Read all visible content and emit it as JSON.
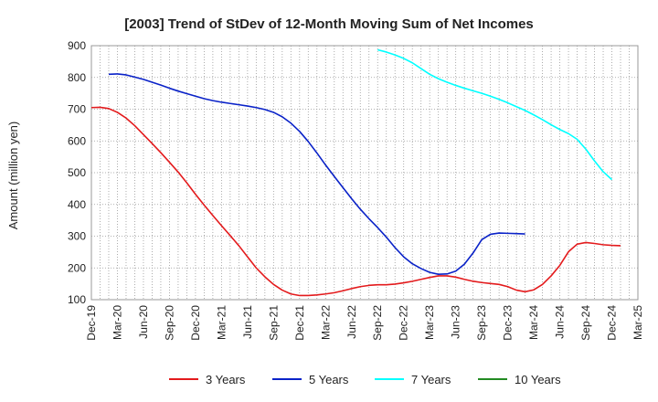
{
  "chart_data": {
    "type": "line",
    "title": "[2003]  Trend of StDev of 12-Month Moving Sum of Net Incomes",
    "xlabel": "",
    "ylabel": "Amount (million yen)",
    "ylim": [
      100,
      900
    ],
    "yticks": [
      100,
      200,
      300,
      400,
      500,
      600,
      700,
      800,
      900
    ],
    "xticks": [
      "Dec-19",
      "Mar-20",
      "Jun-20",
      "Sep-20",
      "Dec-20",
      "Mar-21",
      "Jun-21",
      "Sep-21",
      "Dec-21",
      "Mar-22",
      "Jun-22",
      "Sep-22",
      "Dec-22",
      "Mar-23",
      "Jun-23",
      "Sep-23",
      "Dec-23",
      "Mar-24",
      "Jun-24",
      "Sep-24",
      "Dec-24",
      "Mar-25"
    ],
    "grid": true,
    "legend_position": "bottom",
    "series": [
      {
        "name": "3 Years",
        "color": "#e31a1c",
        "values": [
          705,
          706,
          702,
          690,
          672,
          648,
          620,
          592,
          563,
          533,
          502,
          468,
          432,
          398,
          365,
          333,
          302,
          270,
          235,
          200,
          172,
          148,
          130,
          118,
          113,
          113,
          115,
          118,
          122,
          128,
          135,
          141,
          145,
          147,
          147,
          149,
          153,
          158,
          164,
          170,
          175,
          175,
          171,
          164,
          158,
          154,
          151,
          148,
          141,
          130,
          125,
          131,
          148,
          175,
          208,
          251,
          275,
          280,
          277,
          273,
          271,
          270
        ],
        "start_index": 0
      },
      {
        "name": "5 Years",
        "color": "#0a22c8",
        "values": [
          810,
          811,
          808,
          801,
          794,
          785,
          776,
          766,
          757,
          749,
          741,
          733,
          727,
          722,
          718,
          714,
          710,
          705,
          699,
          690,
          676,
          656,
          630,
          598,
          562,
          524,
          488,
          453,
          418,
          385,
          355,
          327,
          297,
          264,
          235,
          213,
          198,
          186,
          180,
          181,
          190,
          212,
          247,
          289,
          306,
          310,
          309,
          308,
          307
        ],
        "start_index": 2
      },
      {
        "name": "7 Years",
        "color": "#00ffff",
        "values": [
          887,
          880,
          871,
          860,
          846,
          828,
          810,
          796,
          785,
          775,
          766,
          758,
          750,
          741,
          731,
          720,
          708,
          696,
          682,
          667,
          651,
          636,
          623,
          605,
          574,
          537,
          503,
          478
        ],
        "start_index": 33
      },
      {
        "name": "10 Years",
        "color": "#228b22",
        "values": [],
        "start_index": 0
      }
    ]
  }
}
